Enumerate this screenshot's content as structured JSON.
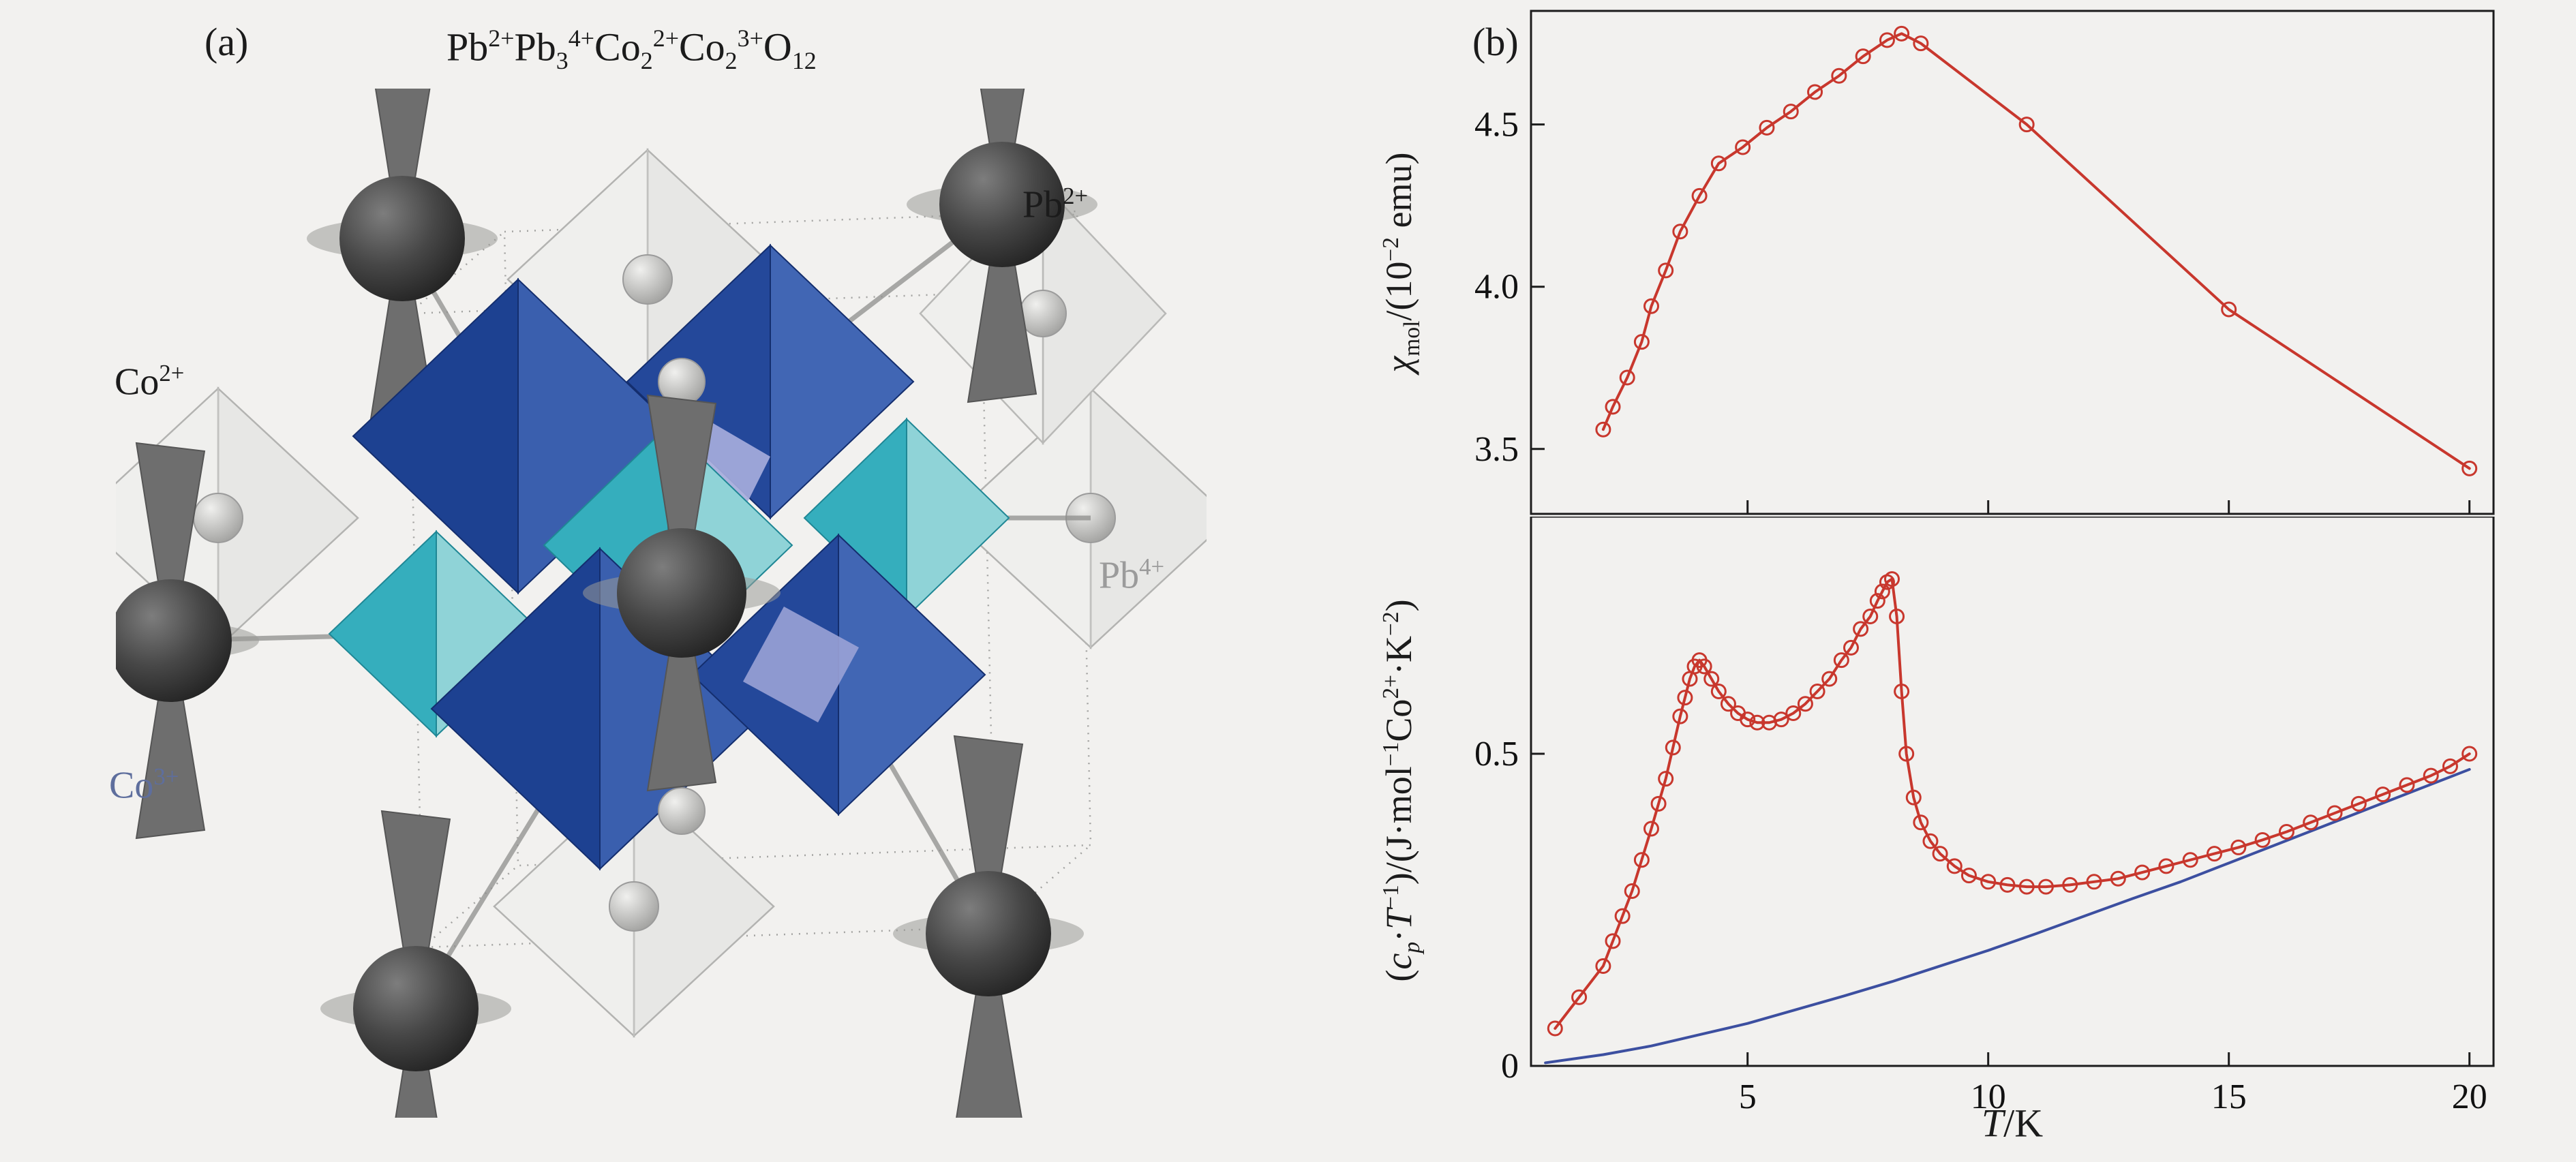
{
  "panel_a": {
    "label": "(a)",
    "formula_rich": "Pb^2+^Pb_3_^4+^Co_2_^2+^Co_2_^3+^O_12_",
    "atom_labels": [
      {
        "id": "pb2plus",
        "text_rich": "Pb^2+^",
        "color": "#1b1b1b"
      },
      {
        "id": "co2plus",
        "text_rich": "Co^2+^",
        "color": "#1b1b1b"
      },
      {
        "id": "pb4plus",
        "text_rich": "Pb^4+^",
        "color": "#9b9b9b"
      },
      {
        "id": "co3plus",
        "text_rich": "Co^3+^",
        "color": "#5e6e9d"
      }
    ],
    "structure_colors": {
      "pb2_sphere": "#474747",
      "pb4_octahedron": "#ebebe9",
      "co3_octahedron": "#1d4191",
      "co2_octahedron": "#35aebd"
    }
  },
  "panel_b": {
    "label": "(b)",
    "xlabel_rich": "*T*/K",
    "top_ylabel_rich": "*χ*_mol_/(10^−2^ emu)",
    "bottom_ylabel_rich": "(*c*_*p*_·*T*^−1^)/(J·mol^−1^Co^2+^·K^−2^)"
  },
  "chart_data": [
    {
      "type": "line",
      "title": "",
      "xlabel": "T/K",
      "ylabel": "chi_mol / (10^-2 emu)",
      "xlim": [
        0.5,
        20.5
      ],
      "ylim": [
        3.3,
        4.85
      ],
      "xticks": [
        5,
        10,
        15,
        20
      ],
      "xtick_labels": [
        "5",
        "10",
        "15",
        "20"
      ],
      "show_xtick_labels": false,
      "yticks": [
        3.5,
        4.0,
        4.5
      ],
      "ytick_labels": [
        "3.5",
        "4.0",
        "4.5"
      ],
      "grid": false,
      "legend": "none",
      "series": [
        {
          "name": "molar susceptibility",
          "color": "#c8372d",
          "marker": "circle",
          "x": [
            2.0,
            2.2,
            2.5,
            2.8,
            3.0,
            3.3,
            3.6,
            4.0,
            4.4,
            4.9,
            5.4,
            5.9,
            6.4,
            6.9,
            7.4,
            7.9,
            8.2,
            8.6,
            10.8,
            15.0,
            20.0
          ],
          "y": [
            3.56,
            3.63,
            3.72,
            3.83,
            3.94,
            4.05,
            4.17,
            4.28,
            4.38,
            4.43,
            4.49,
            4.54,
            4.6,
            4.65,
            4.71,
            4.76,
            4.78,
            4.75,
            4.5,
            3.93,
            3.44
          ]
        }
      ]
    },
    {
      "type": "line",
      "title": "",
      "xlabel": "T/K",
      "ylabel": "(cp·T^-1)/(J·mol^-1 Co^2+ · K^-2)",
      "xlim": [
        0.5,
        20.5
      ],
      "ylim": [
        0,
        0.88
      ],
      "xticks": [
        5,
        10,
        15,
        20
      ],
      "xtick_labels": [
        "5",
        "10",
        "15",
        "20"
      ],
      "show_xtick_labels": true,
      "yticks": [
        0,
        0.5
      ],
      "ytick_labels": [
        "0",
        "0.5"
      ],
      "grid": false,
      "legend": "none",
      "series": [
        {
          "name": "lattice fit",
          "color": "#3c4fa0",
          "marker": "none",
          "x": [
            0.8,
            2,
            3,
            4,
            5,
            6,
            7,
            8,
            9,
            10,
            11,
            12,
            13,
            14,
            15,
            16,
            17,
            18,
            19,
            20
          ],
          "y": [
            0.005,
            0.018,
            0.032,
            0.05,
            0.068,
            0.09,
            0.112,
            0.135,
            0.16,
            0.185,
            0.212,
            0.24,
            0.268,
            0.295,
            0.325,
            0.355,
            0.385,
            0.415,
            0.445,
            0.475
          ]
        },
        {
          "name": "cp/T measured",
          "color": "#c8372d",
          "marker": "circle",
          "x": [
            1.0,
            1.5,
            2.0,
            2.2,
            2.4,
            2.6,
            2.8,
            3.0,
            3.15,
            3.3,
            3.45,
            3.6,
            3.7,
            3.8,
            3.9,
            4.0,
            4.1,
            4.25,
            4.4,
            4.6,
            4.8,
            5.0,
            5.2,
            5.45,
            5.7,
            5.95,
            6.2,
            6.45,
            6.7,
            6.95,
            7.15,
            7.35,
            7.55,
            7.7,
            7.8,
            7.9,
            8.0,
            8.1,
            8.2,
            8.3,
            8.45,
            8.6,
            8.8,
            9.0,
            9.3,
            9.6,
            10.0,
            10.4,
            10.8,
            11.2,
            11.7,
            12.2,
            12.7,
            13.2,
            13.7,
            14.2,
            14.7,
            15.2,
            15.7,
            16.2,
            16.7,
            17.2,
            17.7,
            18.2,
            18.7,
            19.2,
            19.6,
            20.0
          ],
          "y": [
            0.06,
            0.11,
            0.16,
            0.2,
            0.24,
            0.28,
            0.33,
            0.38,
            0.42,
            0.46,
            0.51,
            0.56,
            0.59,
            0.62,
            0.64,
            0.65,
            0.64,
            0.62,
            0.6,
            0.58,
            0.565,
            0.555,
            0.55,
            0.55,
            0.555,
            0.565,
            0.58,
            0.6,
            0.62,
            0.65,
            0.67,
            0.7,
            0.72,
            0.745,
            0.76,
            0.775,
            0.78,
            0.72,
            0.6,
            0.5,
            0.43,
            0.39,
            0.36,
            0.34,
            0.32,
            0.305,
            0.295,
            0.29,
            0.287,
            0.287,
            0.29,
            0.295,
            0.3,
            0.31,
            0.32,
            0.33,
            0.34,
            0.35,
            0.362,
            0.375,
            0.39,
            0.405,
            0.42,
            0.435,
            0.45,
            0.465,
            0.48,
            0.5
          ]
        }
      ]
    }
  ]
}
